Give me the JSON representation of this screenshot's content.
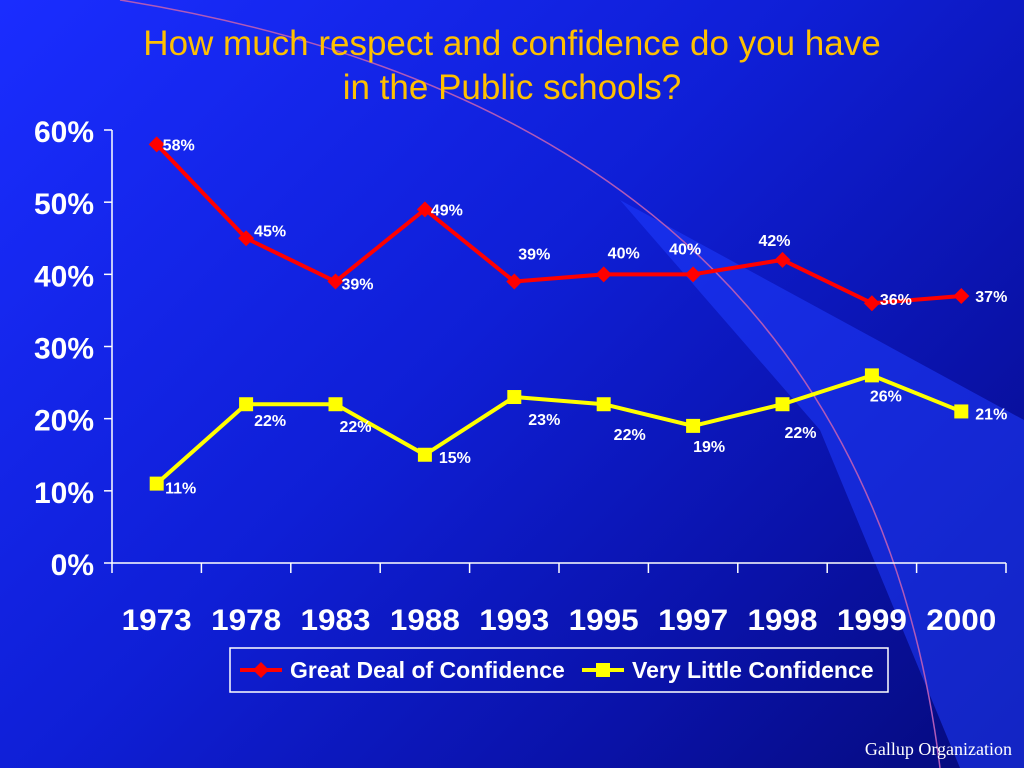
{
  "slide": {
    "title_line1": "How much respect and confidence do you have",
    "title_line2": "in the Public schools?",
    "footer": "Gallup Organization"
  },
  "colors": {
    "title": "#ffc000",
    "great_deal": "#ff0000",
    "very_little": "#ffff00",
    "axis": "#ffffff",
    "background": "#1122e6"
  },
  "chart_data": {
    "type": "line",
    "title": "How much respect and confidence do you have in the Public schools?",
    "categories": [
      "1973",
      "1978",
      "1983",
      "1988",
      "1993",
      "1995",
      "1997",
      "1998",
      "1999",
      "2000"
    ],
    "ylim": [
      0,
      60
    ],
    "yticks": [
      "0%",
      "10%",
      "20%",
      "30%",
      "40%",
      "50%",
      "60%"
    ],
    "grid": false,
    "legend_position": "bottom",
    "series": [
      {
        "name": "Great Deal of Confidence",
        "color": "#ff0000",
        "marker": "diamond",
        "values": [
          58,
          45,
          39,
          49,
          39,
          40,
          40,
          42,
          36,
          37
        ],
        "labels": [
          "58%",
          "45%",
          "39%",
          "49%",
          "39%",
          "40%",
          "40%",
          "42%",
          "36%",
          "37%"
        ]
      },
      {
        "name": "Very Little Confidence",
        "color": "#ffff00",
        "marker": "square",
        "values": [
          11,
          22,
          22,
          15,
          23,
          22,
          19,
          22,
          26,
          21
        ],
        "labels": [
          "11%",
          "22%",
          "22%",
          "15%",
          "23%",
          "22%",
          "19%",
          "22%",
          "26%",
          "21%"
        ]
      }
    ]
  }
}
